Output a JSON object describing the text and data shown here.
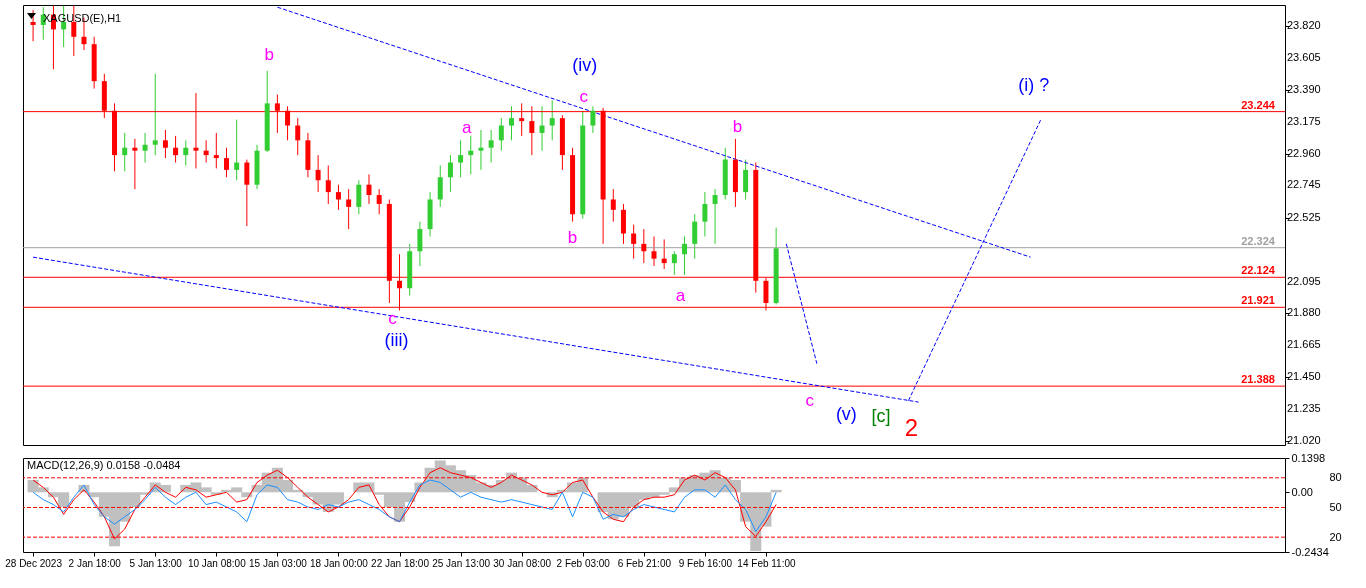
{
  "chart_data": [
    {
      "type": "candlestick",
      "title": "XAGUSD(E),H1",
      "tick_labels": "y",
      "categories": [
        null,
        null,
        null,
        null,
        null,
        null,
        null,
        null,
        null,
        null,
        null,
        null,
        null,
        null,
        null,
        null,
        null,
        null,
        null,
        null,
        null,
        null,
        null,
        null,
        null,
        null,
        null,
        null,
        null,
        null,
        null,
        null,
        null,
        null,
        null,
        null,
        null,
        null,
        null,
        null,
        null,
        null,
        null,
        null,
        null,
        null,
        null,
        null,
        null,
        null,
        null,
        null,
        null,
        null,
        null,
        null,
        null,
        null,
        null,
        null,
        null,
        null,
        null,
        null,
        null,
        null,
        null,
        null,
        null,
        null,
        null,
        null,
        null,
        null,
        null,
        null,
        null,
        null,
        null,
        null,
        null,
        null,
        null,
        null,
        null,
        null,
        null,
        null,
        null,
        null,
        null,
        null,
        null,
        null,
        null,
        null,
        null,
        null,
        null,
        null,
        null,
        null,
        null,
        null,
        null,
        null,
        null,
        null,
        null,
        null,
        null,
        null,
        null,
        null,
        null,
        null,
        null,
        null,
        null,
        null,
        null,
        null,
        null
      ],
      "ylim": [
        20.99,
        23.965
      ],
      "yticks": [
        {
          "value": 23.82,
          "label": "23.820"
        },
        {
          "value": 23.605,
          "label": "23.605"
        },
        {
          "value": 23.39,
          "label": "23.390"
        },
        {
          "value": 23.175,
          "label": "23.175"
        },
        {
          "value": 22.96,
          "label": "22.960"
        },
        {
          "value": 22.745,
          "label": "22.745"
        },
        {
          "value": 22.525,
          "label": "22.525"
        },
        {
          "value": 22.095,
          "label": "22.095"
        },
        {
          "value": 21.88,
          "label": "21.880"
        },
        {
          "value": 21.665,
          "label": "21.665"
        },
        {
          "value": 21.45,
          "label": "21.450"
        },
        {
          "value": 21.235,
          "label": "21.235"
        },
        {
          "value": 21.02,
          "label": "21.020"
        }
      ],
      "ohlc": [
        [
          23.85,
          23.93,
          23.72,
          23.83
        ],
        [
          23.83,
          23.95,
          23.73,
          23.9
        ],
        [
          23.9,
          23.96,
          23.53,
          23.8
        ],
        [
          23.8,
          23.96,
          23.68,
          23.85
        ],
        [
          23.85,
          23.96,
          23.62,
          23.75
        ],
        [
          23.75,
          23.88,
          23.66,
          23.7
        ],
        [
          23.7,
          23.75,
          23.4,
          23.45
        ],
        [
          23.45,
          23.5,
          23.2,
          23.25
        ],
        [
          23.25,
          23.3,
          22.84,
          22.95
        ],
        [
          22.95,
          23.1,
          22.84,
          23.0
        ],
        [
          23.0,
          23.06,
          22.72,
          22.98
        ],
        [
          22.98,
          23.1,
          22.9,
          23.02
        ],
        [
          23.02,
          23.5,
          22.95,
          23.05
        ],
        [
          23.05,
          23.12,
          22.93,
          23.0
        ],
        [
          23.0,
          23.08,
          22.9,
          22.95
        ],
        [
          22.95,
          23.05,
          22.88,
          23.0
        ],
        [
          23.0,
          23.37,
          22.86,
          22.98
        ],
        [
          22.98,
          23.05,
          22.9,
          22.95
        ],
        [
          22.95,
          23.1,
          22.86,
          22.93
        ],
        [
          22.93,
          23.0,
          22.8,
          22.85
        ],
        [
          22.85,
          23.19,
          22.78,
          22.9
        ],
        [
          22.9,
          22.92,
          22.47,
          22.75
        ],
        [
          22.75,
          23.02,
          22.72,
          22.98
        ],
        [
          22.98,
          23.52,
          22.97,
          23.3
        ],
        [
          23.3,
          23.36,
          23.1,
          23.25
        ],
        [
          23.25,
          23.28,
          23.05,
          23.15
        ],
        [
          23.15,
          23.2,
          22.95,
          23.05
        ],
        [
          23.05,
          23.1,
          22.8,
          22.85
        ],
        [
          22.85,
          22.95,
          22.7,
          22.78
        ],
        [
          22.78,
          22.88,
          22.62,
          22.7
        ],
        [
          22.7,
          22.75,
          22.58,
          22.65
        ],
        [
          22.65,
          22.72,
          22.45,
          22.6
        ],
        [
          22.6,
          22.78,
          22.55,
          22.75
        ],
        [
          22.75,
          22.82,
          22.62,
          22.68
        ],
        [
          22.68,
          22.72,
          22.55,
          22.62
        ],
        [
          22.62,
          22.65,
          21.95,
          22.1
        ],
        [
          22.1,
          22.28,
          21.9,
          22.05
        ],
        [
          22.05,
          22.35,
          22.0,
          22.3
        ],
        [
          22.3,
          22.5,
          22.2,
          22.45
        ],
        [
          22.45,
          22.7,
          22.4,
          22.65
        ],
        [
          22.65,
          22.88,
          22.6,
          22.8
        ],
        [
          22.8,
          22.95,
          22.7,
          22.9
        ],
        [
          22.9,
          23.05,
          22.8,
          22.95
        ],
        [
          22.95,
          23.08,
          22.82,
          22.98
        ],
        [
          22.98,
          23.12,
          22.85,
          23.0
        ],
        [
          23.0,
          23.12,
          22.9,
          23.05
        ],
        [
          23.05,
          23.2,
          22.98,
          23.15
        ],
        [
          23.15,
          23.28,
          23.05,
          23.2
        ],
        [
          23.2,
          23.3,
          23.08,
          23.18
        ],
        [
          23.18,
          23.28,
          22.95,
          23.1
        ],
        [
          23.1,
          23.28,
          22.98,
          23.15
        ],
        [
          23.15,
          23.32,
          23.05,
          23.2
        ],
        [
          23.2,
          23.22,
          22.85,
          22.95
        ],
        [
          22.95,
          23.0,
          22.5,
          22.55
        ],
        [
          22.55,
          23.25,
          22.52,
          23.15
        ],
        [
          23.15,
          23.28,
          23.1,
          23.25
        ],
        [
          23.25,
          23.27,
          22.35,
          22.65
        ],
        [
          22.65,
          22.72,
          22.5,
          22.58
        ],
        [
          22.58,
          22.62,
          22.35,
          22.42
        ],
        [
          22.42,
          22.48,
          22.25,
          22.35
        ],
        [
          22.35,
          22.45,
          22.22,
          22.3
        ],
        [
          22.3,
          22.4,
          22.2,
          22.25
        ],
        [
          22.25,
          22.38,
          22.18,
          22.22
        ],
        [
          22.22,
          22.3,
          22.14,
          22.28
        ],
        [
          22.28,
          22.4,
          22.14,
          22.35
        ],
        [
          22.35,
          22.55,
          22.25,
          22.5
        ],
        [
          22.5,
          22.7,
          22.4,
          22.62
        ],
        [
          22.62,
          22.72,
          22.35,
          22.68
        ],
        [
          22.68,
          23.0,
          22.65,
          22.92
        ],
        [
          22.92,
          23.06,
          22.6,
          22.7
        ],
        [
          22.7,
          22.92,
          22.65,
          22.85
        ],
        [
          22.85,
          22.9,
          22.02,
          22.1
        ],
        [
          22.1,
          22.12,
          21.9,
          21.95
        ],
        [
          21.95,
          22.46,
          21.94,
          22.32
        ],
        null,
        null,
        null,
        null,
        null,
        null,
        null,
        null,
        null,
        null,
        null,
        null,
        null,
        null,
        null,
        null,
        null,
        null,
        null,
        null,
        null,
        null,
        null,
        null,
        null,
        null,
        null,
        null,
        null,
        null,
        null,
        null,
        null,
        null,
        null,
        null,
        null,
        null,
        null,
        null,
        null,
        null,
        null,
        null,
        null,
        null,
        null,
        null,
        null
      ],
      "colors": [
        "#ff0000",
        "#32cd32",
        "#ff0000",
        "#32cd32",
        "#ff0000",
        "#ff0000",
        "#ff0000",
        "#ff0000",
        "#ff0000",
        "#32cd32",
        "#ff0000",
        "#32cd32",
        "#32cd32",
        "#ff0000",
        "#ff0000",
        "#32cd32",
        "#ff0000",
        "#ff0000",
        "#ff0000",
        "#ff0000",
        "#32cd32",
        "#ff0000",
        "#32cd32",
        "#32cd32",
        "#ff0000",
        "#ff0000",
        "#ff0000",
        "#ff0000",
        "#ff0000",
        "#ff0000",
        "#ff0000",
        "#ff0000",
        "#32cd32",
        "#ff0000",
        "#ff0000",
        "#ff0000",
        "#ff0000",
        "#32cd32",
        "#32cd32",
        "#32cd32",
        "#32cd32",
        "#32cd32",
        "#32cd32",
        "#32cd32",
        "#32cd32",
        "#32cd32",
        "#32cd32",
        "#32cd32",
        "#ff0000",
        "#ff0000",
        "#32cd32",
        "#32cd32",
        "#ff0000",
        "#ff0000",
        "#32cd32",
        "#32cd32",
        "#ff0000",
        "#ff0000",
        "#ff0000",
        "#ff0000",
        "#ff0000",
        "#ff0000",
        "#ff0000",
        "#32cd32",
        "#32cd32",
        "#32cd32",
        "#32cd32",
        "#32cd32",
        "#32cd32",
        "#ff0000",
        "#32cd32",
        "#ff0000",
        "#ff0000",
        "#32cd32",
        null,
        null,
        null,
        null,
        null,
        null,
        null,
        null,
        null,
        null,
        null,
        null,
        null,
        null,
        null,
        null,
        null,
        null,
        null,
        null,
        null,
        null,
        null,
        null,
        null,
        null,
        null,
        null,
        null,
        null,
        null,
        null,
        null,
        null,
        null,
        null,
        null,
        null,
        null,
        null,
        null,
        null,
        null,
        null,
        null,
        null,
        null,
        null,
        null
      ],
      "series": [
        {
          "type": "line",
          "color": "#0000ff",
          "line_style": "dashed",
          "values": [
            null,
            null,
            null,
            null,
            null,
            null,
            null,
            null,
            null,
            null,
            null,
            null,
            null,
            null,
            null,
            null,
            null,
            null,
            null,
            null,
            null,
            null,
            null,
            null,
            23.95,
            null,
            null,
            null,
            null,
            null,
            null,
            null,
            null,
            null,
            null,
            null,
            null,
            null,
            null,
            null,
            null,
            null,
            null,
            null,
            null,
            null,
            null,
            null,
            null,
            null,
            null,
            null,
            null,
            null,
            null,
            null,
            null,
            null,
            null,
            null,
            null,
            null,
            null,
            null,
            null,
            null,
            null,
            null,
            null,
            null,
            null,
            null,
            null,
            null,
            null,
            null,
            null,
            null,
            null,
            null,
            null,
            null,
            null,
            null,
            null,
            null,
            null,
            null,
            null,
            null,
            null,
            null,
            null,
            null,
            null,
            null,
            null,
            null,
            22.26,
            null,
            null,
            null,
            null,
            null,
            null,
            null,
            null,
            null,
            null,
            null,
            null,
            null,
            null,
            null,
            null,
            null,
            null,
            null,
            null,
            null,
            null,
            null,
            null
          ]
        },
        {
          "type": "line",
          "color": "#0000ff",
          "line_style": "dashed",
          "values": [
            22.26,
            null,
            null,
            null,
            null,
            null,
            null,
            null,
            null,
            null,
            null,
            null,
            null,
            null,
            null,
            null,
            null,
            null,
            null,
            null,
            null,
            null,
            null,
            null,
            null,
            null,
            null,
            null,
            null,
            null,
            null,
            null,
            null,
            null,
            null,
            null,
            null,
            null,
            null,
            null,
            null,
            null,
            null,
            null,
            null,
            null,
            null,
            null,
            null,
            null,
            null,
            null,
            null,
            null,
            null,
            null,
            null,
            null,
            null,
            null,
            null,
            null,
            null,
            null,
            null,
            null,
            null,
            null,
            null,
            null,
            null,
            null,
            null,
            null,
            null,
            null,
            null,
            null,
            null,
            null,
            null,
            null,
            null,
            null,
            null,
            null,
            null,
            21.28,
            null,
            null,
            null,
            null,
            null,
            null,
            null,
            null,
            null,
            null,
            null,
            null,
            null,
            null,
            null,
            null,
            null,
            null,
            null,
            null,
            null,
            null,
            null,
            null,
            null,
            null,
            null,
            null,
            null,
            null,
            null,
            null,
            null,
            null,
            null
          ]
        },
        {
          "type": "line",
          "color": "#0000ff",
          "line_style": "dashed",
          "values": [
            null,
            null,
            null,
            null,
            null,
            null,
            null,
            null,
            null,
            null,
            null,
            null,
            null,
            null,
            null,
            null,
            null,
            null,
            null,
            null,
            null,
            null,
            null,
            null,
            null,
            null,
            null,
            null,
            null,
            null,
            null,
            null,
            null,
            null,
            null,
            null,
            null,
            null,
            null,
            null,
            null,
            null,
            null,
            null,
            null,
            null,
            null,
            null,
            null,
            null,
            null,
            null,
            null,
            null,
            null,
            null,
            null,
            null,
            null,
            null,
            null,
            null,
            null,
            null,
            null,
            null,
            null,
            null,
            null,
            null,
            null,
            null,
            null,
            null,
            22.35,
            null,
            null,
            21.54,
            null,
            null,
            null,
            null,
            null,
            null,
            null,
            null,
            null,
            null,
            null,
            null,
            null,
            null,
            null,
            null,
            null,
            null,
            null,
            null,
            null,
            null,
            null,
            null,
            null,
            null,
            null,
            null,
            null,
            null,
            null,
            null,
            null,
            null,
            null,
            null,
            null,
            null,
            null,
            null,
            null,
            null,
            null,
            null,
            null
          ]
        },
        {
          "type": "line",
          "color": "#0000ff",
          "line_style": "dashed",
          "values": [
            null,
            null,
            null,
            null,
            null,
            null,
            null,
            null,
            null,
            null,
            null,
            null,
            null,
            null,
            null,
            null,
            null,
            null,
            null,
            null,
            null,
            null,
            null,
            null,
            null,
            null,
            null,
            null,
            null,
            null,
            null,
            null,
            null,
            null,
            null,
            null,
            null,
            null,
            null,
            null,
            null,
            null,
            null,
            null,
            null,
            null,
            null,
            null,
            null,
            null,
            null,
            null,
            null,
            null,
            null,
            null,
            null,
            null,
            null,
            null,
            null,
            null,
            null,
            null,
            null,
            null,
            null,
            null,
            null,
            null,
            null,
            null,
            null,
            null,
            null,
            null,
            null,
            null,
            null,
            null,
            null,
            null,
            null,
            null,
            null,
            null,
            21.29,
            null,
            null,
            null,
            null,
            null,
            null,
            null,
            null,
            null,
            null,
            null,
            null,
            23.19,
            null,
            null,
            null,
            null,
            null,
            null,
            null,
            null,
            null,
            null,
            null,
            null,
            null,
            null,
            null,
            null,
            null,
            null,
            null,
            null,
            null,
            null,
            null
          ]
        }
      ],
      "ref_lines": [
        {
          "axis": "y",
          "value": 23.244,
          "label": "23.244",
          "color": "#ff0000"
        },
        {
          "axis": "y",
          "value": 22.324,
          "label": "22.324",
          "color": "#a0a0a0"
        },
        {
          "axis": "y",
          "value": 22.124,
          "label": "22.124",
          "color": "#ff0000"
        },
        {
          "axis": "y",
          "value": 21.921,
          "label": "21.921",
          "color": "#ff0000"
        },
        {
          "axis": "y",
          "value": 21.388,
          "label": "21.388",
          "color": "#ff0000"
        }
      ],
      "annotations": [
        "b",
        "(iv)",
        "c",
        "a",
        "b",
        "a",
        "b",
        "c",
        "(iii)",
        "c",
        "(v)",
        "[c]",
        "2",
        "(i) ?"
      ]
    },
    {
      "type": "bar",
      "title": "MACD(12,26,9) 0.0158 -0.0484",
      "categories": [
        "28 Dec 2023",
        null,
        null,
        null,
        null,
        null,
        "2 Jan 18:00",
        null,
        null,
        null,
        null,
        null,
        "5 Jan 13:00",
        null,
        null,
        null,
        null,
        null,
        "10 Jan 08:00",
        null,
        null,
        null,
        null,
        null,
        "15 Jan 03:00",
        null,
        null,
        null,
        null,
        null,
        "18 Jan 00:00",
        null,
        null,
        null,
        null,
        null,
        "22 Jan 18:00",
        null,
        null,
        null,
        null,
        null,
        "25 Jan 13:00",
        null,
        null,
        null,
        null,
        null,
        "30 Jan 08:00",
        null,
        null,
        null,
        null,
        null,
        "2 Feb 03:00",
        null,
        null,
        null,
        null,
        null,
        "6 Feb 21:00",
        null,
        null,
        null,
        null,
        null,
        "9 Feb 16:00",
        null,
        null,
        null,
        null,
        null,
        "14 Feb 11:00",
        null,
        null,
        null,
        null,
        null,
        null,
        null,
        null,
        null,
        null,
        null,
        null,
        null,
        null,
        null,
        null,
        null,
        null,
        null,
        null,
        null,
        null,
        null,
        null,
        null,
        null,
        null,
        null,
        null,
        null,
        null,
        null,
        null,
        null,
        null,
        null,
        null,
        null,
        null,
        null,
        null,
        null,
        null,
        null,
        null,
        null,
        null,
        null,
        null,
        null
      ],
      "ylim": [
        -0.2434,
        0.1398
      ],
      "yticks": [
        0.1398,
        {
          "value": 0,
          "label": "0.00"
        },
        -0.2434
      ],
      "y2lim": [
        5,
        100
      ],
      "y2ticks": [
        80,
        50,
        20
      ],
      "series": [
        {
          "color": "#c0c0c0",
          "values": [
            0.05,
            0.02,
            -0.02,
            -0.06,
            0.0,
            0.03,
            -0.02,
            -0.1,
            -0.22,
            -0.12,
            -0.06,
            -0.01,
            0.04,
            0.03,
            0.0,
            0.03,
            0.04,
            0.02,
            -0.01,
            0.01,
            0.02,
            -0.02,
            0.03,
            0.08,
            0.1,
            0.05,
            0.01,
            -0.02,
            -0.05,
            -0.08,
            -0.05,
            0.0,
            0.04,
            0.04,
            -0.01,
            -0.06,
            -0.12,
            -0.04,
            0.04,
            0.1,
            0.13,
            0.11,
            0.09,
            0.07,
            0.04,
            0.03,
            0.05,
            0.08,
            0.06,
            0.03,
            0.0,
            -0.02,
            0.01,
            0.04,
            0.06,
            0.0,
            -0.08,
            -0.11,
            -0.1,
            -0.06,
            -0.03,
            -0.02,
            -0.01,
            0.02,
            0.06,
            0.07,
            0.08,
            0.09,
            0.06,
            0.05,
            -0.12,
            -0.24,
            -0.14,
            0.01,
            null,
            null,
            null,
            null,
            null,
            null,
            null,
            null,
            null,
            null,
            null,
            null,
            null,
            null,
            null,
            null,
            null,
            null,
            null,
            null,
            null,
            null,
            null,
            null,
            null,
            null,
            null,
            null,
            null,
            null,
            null,
            null,
            null,
            null,
            null,
            null,
            null,
            null,
            null,
            null,
            null,
            null,
            null,
            null,
            null,
            null,
            null,
            null,
            null
          ]
        },
        {
          "type": "line",
          "color": "#ff0000",
          "values": [
            0.05,
            0.02,
            -0.02,
            -0.09,
            -0.03,
            0.01,
            -0.04,
            -0.1,
            -0.19,
            -0.15,
            -0.07,
            -0.02,
            0.03,
            0.0,
            -0.02,
            0.02,
            0.01,
            -0.02,
            -0.01,
            0.0,
            -0.04,
            -0.03,
            0.04,
            0.07,
            0.09,
            0.06,
            0.02,
            -0.02,
            -0.05,
            -0.08,
            -0.06,
            -0.03,
            0.02,
            0.03,
            -0.05,
            -0.1,
            -0.12,
            -0.06,
            0.02,
            0.08,
            0.1,
            0.08,
            0.07,
            0.06,
            0.04,
            0.02,
            0.04,
            0.07,
            0.05,
            0.03,
            0.0,
            -0.01,
            0.0,
            0.04,
            0.05,
            -0.02,
            -0.08,
            -0.11,
            -0.12,
            -0.06,
            -0.03,
            -0.02,
            -0.02,
            -0.01,
            0.05,
            0.07,
            0.05,
            0.08,
            0.06,
            0.01,
            -0.14,
            -0.18,
            -0.12,
            -0.05,
            null,
            null,
            null,
            null,
            null,
            null,
            null,
            null,
            null,
            null,
            null,
            null,
            null,
            null,
            null,
            null,
            null,
            null,
            null,
            null,
            null,
            null,
            null,
            null,
            null,
            null,
            null,
            null,
            null,
            null,
            null,
            null,
            null,
            null,
            null,
            null,
            null,
            null,
            null,
            null,
            null,
            null,
            null,
            null,
            null,
            null,
            null,
            null,
            null
          ]
        },
        {
          "type": "line",
          "color": "#1e90ff",
          "values": [
            0.0,
            -0.03,
            -0.05,
            -0.08,
            -0.02,
            0.03,
            -0.05,
            -0.1,
            -0.13,
            -0.1,
            -0.07,
            -0.03,
            0.02,
            -0.02,
            -0.05,
            -0.02,
            0.0,
            -0.05,
            -0.04,
            -0.06,
            -0.08,
            -0.12,
            -0.01,
            0.03,
            0.02,
            -0.03,
            -0.04,
            -0.06,
            -0.07,
            -0.05,
            -0.06,
            -0.04,
            -0.03,
            -0.05,
            -0.07,
            -0.1,
            -0.12,
            -0.04,
            0.03,
            0.05,
            0.04,
            0.01,
            -0.02,
            0.0,
            -0.02,
            -0.03,
            -0.04,
            -0.03,
            -0.04,
            -0.05,
            -0.06,
            -0.07,
            0.0,
            -0.1,
            0.0,
            -0.02,
            -0.11,
            -0.09,
            -0.1,
            -0.07,
            -0.05,
            -0.06,
            -0.07,
            -0.08,
            -0.02,
            0.01,
            0.01,
            -0.02,
            0.03,
            -0.03,
            -0.07,
            -0.16,
            -0.1,
            0.0,
            null,
            null,
            null,
            null,
            null,
            null,
            null,
            null,
            null,
            null,
            null,
            null,
            null,
            null,
            null,
            null,
            null,
            null,
            null,
            null,
            null,
            null,
            null,
            null,
            null,
            null,
            null,
            null,
            null,
            null,
            null,
            null,
            null,
            null,
            null,
            null,
            null,
            null,
            null,
            null,
            null,
            null,
            null,
            null,
            null,
            null,
            null,
            null,
            null
          ]
        }
      ],
      "ref_lines": [
        {
          "axis": "y2",
          "value": 80,
          "color": "#ff0000",
          "line_style": "dashed"
        },
        {
          "axis": "y2",
          "value": 50,
          "color": "#ff0000",
          "line_style": "dashed"
        },
        {
          "axis": "y2",
          "value": 20,
          "color": "#ff0000",
          "line_style": "dashed"
        }
      ]
    }
  ]
}
